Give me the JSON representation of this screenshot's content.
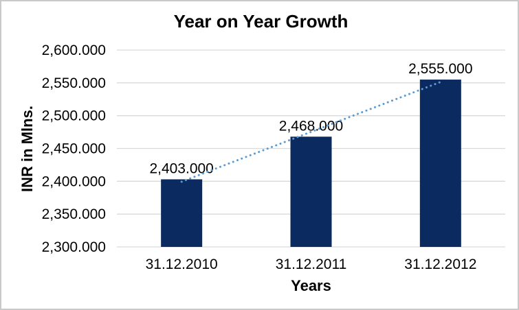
{
  "chart_data": {
    "type": "bar",
    "title": "Year on Year Growth",
    "xlabel": "Years",
    "ylabel": "INR in Mlns.",
    "categories": [
      "31.12.2010",
      "31.12.2011",
      "31.12.2012"
    ],
    "values": [
      2403,
      2468,
      2555
    ],
    "data_labels": [
      "2,403.000",
      "2,468.000",
      "2,555.000"
    ],
    "ylim": [
      2300,
      2600
    ],
    "y_tick_step": 50,
    "y_ticks": [
      {
        "value": 2300,
        "label": "2,300.000"
      },
      {
        "value": 2350,
        "label": "2,350.000"
      },
      {
        "value": 2400,
        "label": "2,400.000"
      },
      {
        "value": 2450,
        "label": "2,450.000"
      },
      {
        "value": 2500,
        "label": "2,500.000"
      },
      {
        "value": 2550,
        "label": "2,550.000"
      },
      {
        "value": 2600,
        "label": "2,600.000"
      }
    ],
    "grid": true,
    "legend": "none",
    "trendline": {
      "type": "linear",
      "style": "dotted"
    },
    "colors": {
      "bar": "#0b2a5f",
      "trendline": "#5b9bd5",
      "gridline": "#d9d9d9",
      "axis_line": "#d9d9d9",
      "text": "#000000",
      "frame_border": "#c9c9c9",
      "background": "#ffffff"
    }
  }
}
